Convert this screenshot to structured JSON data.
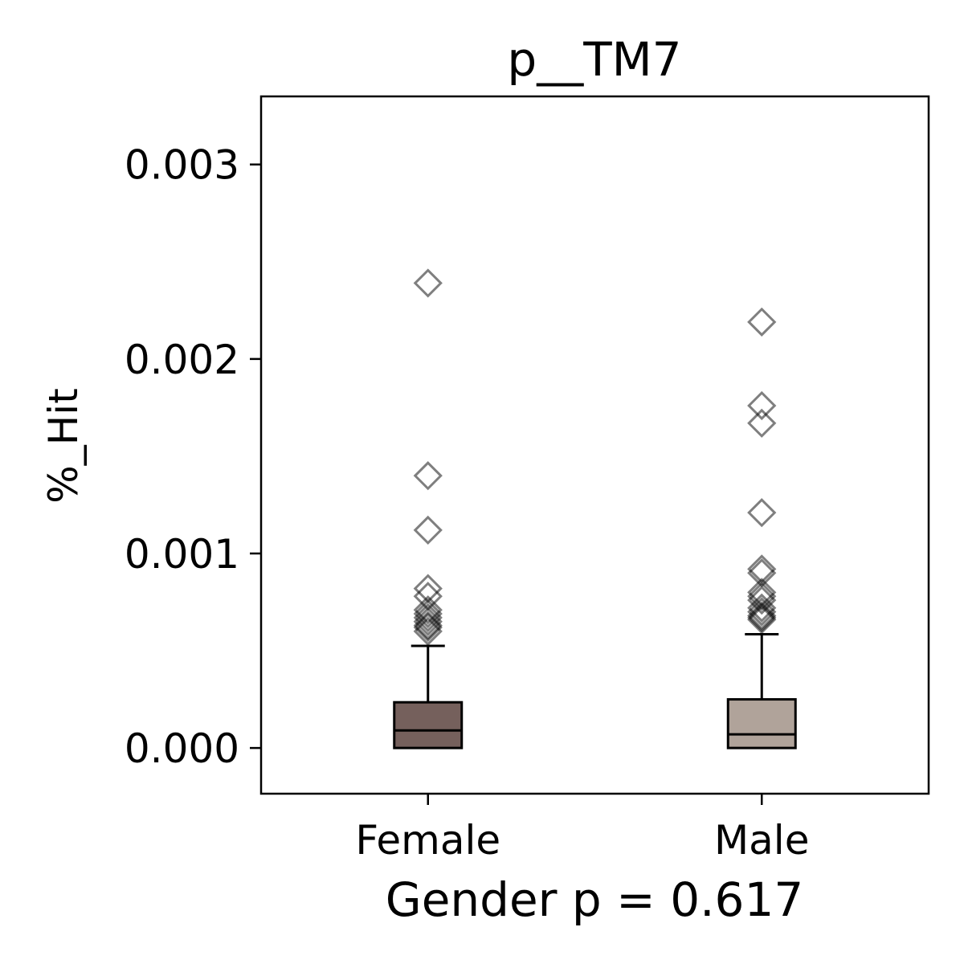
{
  "chart_data": {
    "type": "box",
    "title": "p__TM7",
    "xlabel": "Gender p = 0.617",
    "ylabel": "%_Hit",
    "categories": [
      "Female",
      "Male"
    ],
    "ylim": [
      -0.000235,
      0.00335
    ],
    "yticks": [
      0.0,
      0.001,
      0.002,
      0.003
    ],
    "ytick_labels": [
      "0.000",
      "0.001",
      "0.002",
      "0.003"
    ],
    "grid": false,
    "legend": "none",
    "series": [
      {
        "category": "Female",
        "color": "#75605c",
        "min": 0.0,
        "q1": 0.0,
        "median": 9e-05,
        "q3": 0.000235,
        "whisker_high": 0.000525,
        "outliers": [
          0.00239,
          0.0014,
          0.00112,
          0.00082,
          0.00078,
          0.00071,
          0.00069,
          0.00067,
          0.00065,
          0.00063,
          0.00062,
          0.0006
        ]
      },
      {
        "category": "Male",
        "color": "#b0a39a",
        "min": 0.0,
        "q1": 0.0,
        "median": 7e-05,
        "q3": 0.00025,
        "whisker_high": 0.000585,
        "outliers": [
          0.00219,
          0.00176,
          0.00167,
          0.00121,
          0.00092,
          0.0009,
          0.0008,
          0.00078,
          0.00076,
          0.00072,
          0.0007,
          0.00068,
          0.00067,
          0.00066
        ]
      }
    ]
  }
}
